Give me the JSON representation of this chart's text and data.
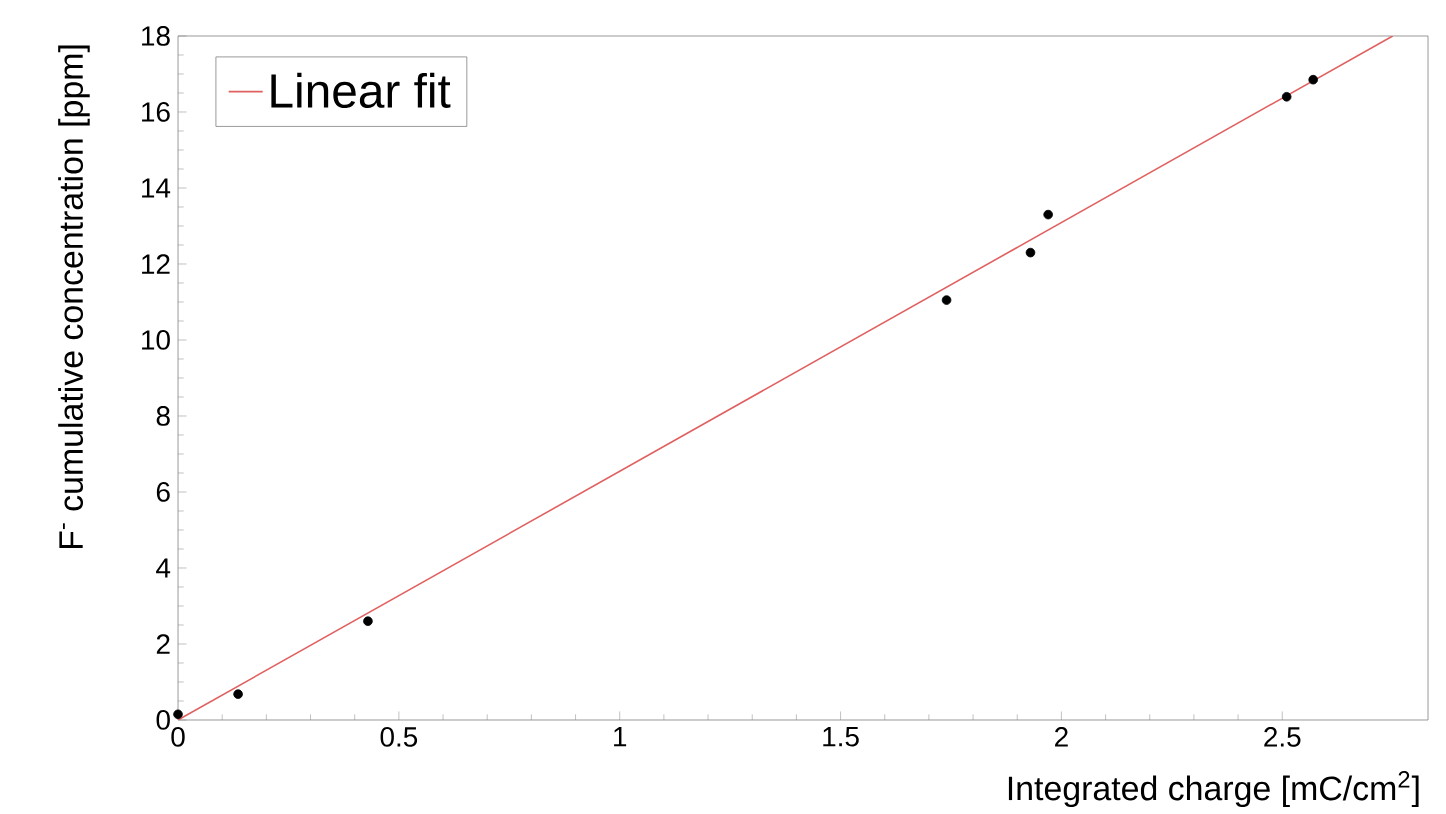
{
  "chart_data": {
    "type": "scatter",
    "xlabel": "Integrated charge [mC/cm$^{2}$]",
    "ylabel": "F$^{-}$ cumulative concentration [ppm]",
    "xlim": [
      0,
      2.83
    ],
    "ylim": [
      0,
      18
    ],
    "xticks": [
      0,
      0.5,
      1,
      1.5,
      2,
      2.5
    ],
    "yticks": [
      0,
      2,
      4,
      6,
      8,
      10,
      12,
      14,
      16,
      18
    ],
    "grid": false,
    "legend": "top left",
    "series": [
      {
        "color": "#000000",
        "marker": "circle",
        "x": [
          0,
          0.136,
          0.43,
          1.74,
          1.93,
          1.97,
          2.51,
          2.57
        ],
        "values": [
          0.15,
          0.68,
          2.6,
          11.05,
          12.3,
          13.3,
          16.4,
          16.85
        ]
      },
      {
        "type": "line",
        "marker": "none",
        "name": "Linear fit",
        "color": "#e06060",
        "x": [
          0,
          2.75
        ],
        "values": [
          0,
          18
        ]
      }
    ]
  }
}
